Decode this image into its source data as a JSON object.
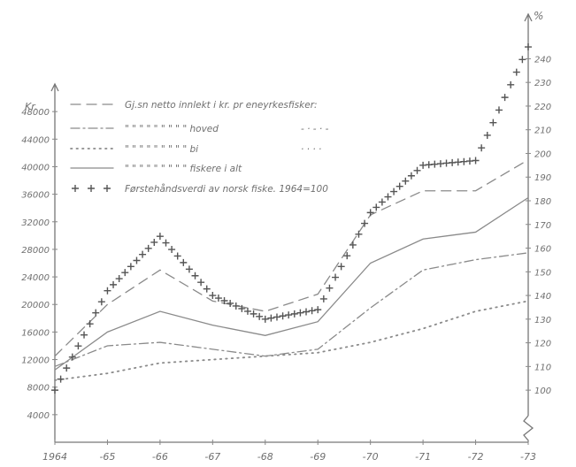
{
  "chart_data": {
    "type": "line",
    "title": "",
    "x_labels": [
      "1964",
      "-65",
      "-66",
      "-67",
      "-68",
      "-69",
      "-70",
      "-71",
      "-72",
      "-73"
    ],
    "x": [
      1964,
      1965,
      1966,
      1967,
      1968,
      1969,
      1970,
      1971,
      1972,
      1973
    ],
    "left_axis": {
      "label": "Kr.",
      "ticks": [
        4000,
        8000,
        12000,
        16000,
        20000,
        24000,
        28000,
        32000,
        36000,
        40000,
        44000,
        48000
      ],
      "tick_labels": [
        "4000",
        "8000",
        "12000",
        "16000",
        "20000",
        "24000",
        "28000",
        "32000",
        "36000",
        "40000",
        "44000",
        "48000"
      ],
      "ylim": [
        0,
        52000
      ]
    },
    "right_axis": {
      "label": "%",
      "ticks": [
        100,
        110,
        120,
        130,
        140,
        150,
        160,
        170,
        180,
        190,
        200,
        210,
        220,
        230,
        240
      ],
      "tick_labels": [
        "100",
        "110",
        "120",
        "130",
        "140",
        "150",
        "160",
        "170",
        "180",
        "190",
        "200",
        "210",
        "220",
        "230",
        "240"
      ],
      "ylim": [
        78,
        248
      ],
      "broken": true
    },
    "legend_position": "top-left",
    "legend": [
      {
        "symbol": "dashed",
        "text": "Gj.sn netto innlekt i kr. pr eneyrkesfisker:",
        "suffix": ""
      },
      {
        "symbol": "dashdot",
        "text": "\"  \"   \"    \"   \"  \"  \"  \"  \"  hoved",
        "suffix": "- · - · -"
      },
      {
        "symbol": "dotted",
        "text": "\"  \"   \"    \"   \"  \"  \"  \"  \"  bi",
        "suffix": "· · · ·"
      },
      {
        "symbol": "solid",
        "text": "\"  \"   \"    \"   \"  \"  \"  \"  \"  fiskere i alt",
        "suffix": ""
      },
      {
        "symbol": "plus",
        "text": "Førstehåndsverdi av norsk fiske. 1964=100",
        "suffix": ""
      }
    ],
    "series": [
      {
        "name": "Gj.sn netto innlekt i kr. pr eneyrkesfisker",
        "axis": "left",
        "style": "dashed",
        "color": "#8a8a8a",
        "values": [
          12500,
          20000,
          25000,
          20500,
          19000,
          21500,
          33000,
          36500,
          36500,
          41000
        ]
      },
      {
        "name": "hoved",
        "axis": "left",
        "style": "dashdot",
        "color": "#8a8a8a",
        "values": [
          11000,
          14000,
          14500,
          13500,
          12500,
          13500,
          19500,
          25000,
          26500,
          27500
        ]
      },
      {
        "name": "bi",
        "axis": "left",
        "style": "dotted",
        "color": "#8a8a8a",
        "values": [
          9000,
          10000,
          11500,
          12000,
          12500,
          13000,
          14500,
          16500,
          19000,
          20500
        ]
      },
      {
        "name": "fiskere i alt",
        "axis": "left",
        "style": "solid",
        "color": "#8a8a8a",
        "values": [
          10500,
          16000,
          19000,
          17000,
          15500,
          17500,
          26000,
          29500,
          30500,
          35500
        ]
      },
      {
        "name": "Førstehåndsverdi av norsk fiske. 1964=100",
        "axis": "right",
        "style": "plus",
        "color": "#555555",
        "values": [
          100,
          142,
          165,
          140,
          130,
          134,
          175,
          195,
          197,
          245
        ]
      }
    ]
  }
}
